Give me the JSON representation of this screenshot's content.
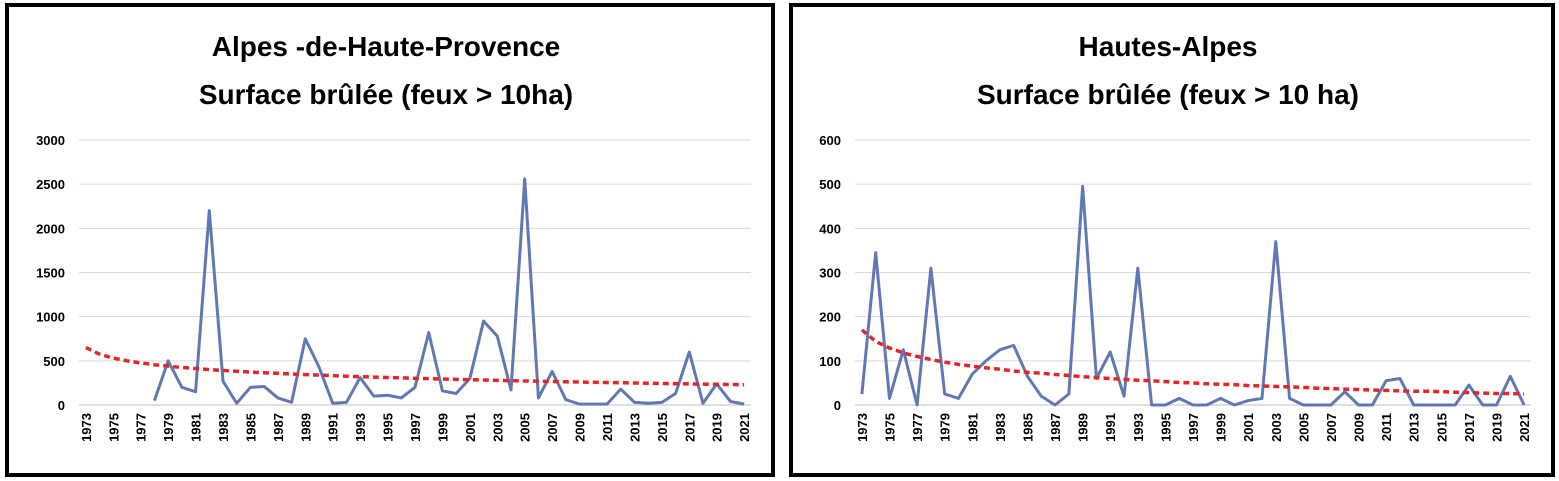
{
  "chart_data": [
    {
      "type": "line",
      "title": "Alpes -de-Haute-Provence",
      "subtitle": "Surface brûlée (feux > 10ha)",
      "categories": [
        "1973",
        null,
        "1975",
        null,
        "1977",
        null,
        "1979",
        null,
        "1981",
        null,
        "1983",
        null,
        "1985",
        null,
        "1987",
        null,
        "1989",
        null,
        "1991",
        null,
        "1993",
        null,
        "1995",
        null,
        "1997",
        null,
        "1999",
        null,
        "2001",
        null,
        "2003",
        null,
        "2005",
        null,
        "2007",
        null,
        "2009",
        null,
        "2011",
        null,
        "2013",
        null,
        "2015",
        null,
        "2017",
        null,
        "2019",
        null,
        "2021"
      ],
      "series": [
        {
          "color": "#6079b4",
          "style": "solid",
          "values": [
            null,
            null,
            null,
            null,
            null,
            50,
            500,
            200,
            150,
            2200,
            270,
            20,
            200,
            210,
            80,
            30,
            750,
            430,
            20,
            30,
            310,
            100,
            110,
            80,
            200,
            820,
            160,
            130,
            300,
            950,
            780,
            170,
            2560,
            80,
            380,
            60,
            10,
            10,
            10,
            180,
            30,
            20,
            30,
            130,
            600,
            20,
            240,
            40,
            10
          ]
        },
        {
          "color": "#e3262a",
          "style": "dashed",
          "values": [
            650,
            575,
            531,
            500,
            476,
            456,
            440,
            425,
            413,
            401,
            391,
            382,
            373,
            365,
            358,
            351,
            344,
            338,
            332,
            326,
            321,
            316,
            311,
            307,
            302,
            298,
            294,
            290,
            286,
            283,
            279,
            276,
            272,
            269,
            266,
            263,
            260,
            257,
            254,
            252,
            249,
            246,
            244,
            241,
            239,
            236,
            234,
            232,
            230
          ]
        }
      ],
      "ylim": [
        0,
        3000
      ],
      "yticks": [
        0,
        500,
        1000,
        1500,
        2000,
        2500,
        3000
      ],
      "grid": true
    },
    {
      "type": "line",
      "title": "Hautes-Alpes",
      "subtitle": "Surface brûlée (feux > 10 ha)",
      "categories": [
        "1973",
        null,
        "1975",
        null,
        "1977",
        null,
        "1979",
        null,
        "1981",
        null,
        "1983",
        null,
        "1985",
        null,
        "1987",
        null,
        "1989",
        null,
        "1991",
        null,
        "1993",
        null,
        "1995",
        null,
        "1997",
        null,
        "1999",
        null,
        "2001",
        null,
        "2003",
        null,
        "2005",
        null,
        "2007",
        null,
        "2009",
        null,
        "2011",
        null,
        "2013",
        null,
        "2015",
        null,
        "2017",
        null,
        "2019",
        null,
        "2021"
      ],
      "series": [
        {
          "color": "#6079b4",
          "style": "solid",
          "values": [
            25,
            345,
            15,
            125,
            0,
            310,
            25,
            15,
            70,
            100,
            125,
            135,
            65,
            20,
            0,
            25,
            495,
            60,
            120,
            20,
            310,
            0,
            0,
            15,
            0,
            0,
            15,
            0,
            10,
            15,
            370,
            15,
            0,
            0,
            0,
            30,
            0,
            0,
            55,
            60,
            0,
            0,
            0,
            0,
            45,
            0,
            0,
            65,
            0
          ]
        },
        {
          "color": "#e3262a",
          "style": "dashed",
          "values": [
            170,
            144,
            129,
            118,
            110,
            103,
            97,
            92,
            88,
            84,
            81,
            77,
            74,
            72,
            69,
            67,
            64,
            62,
            60,
            58,
            56,
            55,
            53,
            51,
            50,
            48,
            47,
            46,
            44,
            43,
            42,
            41,
            40,
            38,
            37,
            36,
            35,
            34,
            33,
            32,
            31,
            31,
            30,
            29,
            28,
            27,
            26,
            26,
            25
          ]
        }
      ],
      "ylim": [
        0,
        600
      ],
      "yticks": [
        0,
        100,
        200,
        300,
        400,
        500,
        600
      ],
      "grid": true
    }
  ]
}
